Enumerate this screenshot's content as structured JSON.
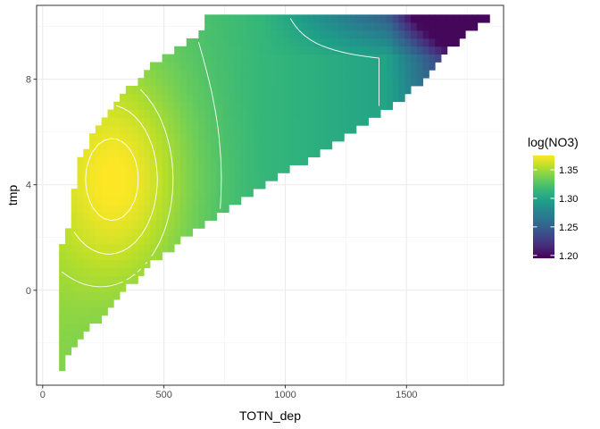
{
  "chart_data": {
    "type": "heatmap",
    "title": "",
    "xlabel": "TOTN_dep",
    "ylabel": "tmp",
    "xlim": [
      -25,
      1900
    ],
    "ylim": [
      -3.6,
      10.8
    ],
    "x_ticks": [
      0,
      500,
      1000,
      1500
    ],
    "x_tick_labels": [
      "0",
      "500",
      "1000",
      "1500"
    ],
    "y_ticks": [
      0,
      4,
      8
    ],
    "y_tick_labels": [
      "0",
      "4",
      "8"
    ],
    "x_minor_ticks": [
      250,
      750,
      1250,
      1750
    ],
    "y_minor_ticks": [
      -2,
      2,
      6,
      10
    ],
    "grid": true,
    "theme": "bw",
    "fill_variable": "log(NO3)",
    "fill_range": [
      1.195,
      1.375
    ],
    "colorscale": "viridis",
    "legend": {
      "title": "log(NO3)",
      "position": "right",
      "breaks": [
        1.35,
        1.3,
        1.25,
        1.2
      ],
      "break_labels": [
        "1.35",
        "1.30",
        "1.25",
        "1.20"
      ]
    },
    "contours": true,
    "contour_color": "#ffffff",
    "contour_levels": [
      1.3,
      1.325,
      1.35,
      1.36,
      1.37
    ],
    "grid_cells": {
      "x_start": 80,
      "x_step": 25,
      "x_count": 72,
      "y_start": -2.9,
      "y_step": 0.3,
      "y_count": 45
    },
    "domain_min_x": [
      [
        -2.9,
        80
      ],
      [
        -2.6,
        95
      ],
      [
        -2.3,
        115
      ],
      [
        -2.0,
        140
      ],
      [
        -1.5,
        190
      ],
      [
        -1.0,
        240
      ],
      [
        -0.4,
        300
      ],
      [
        0.2,
        360
      ],
      [
        0.8,
        420
      ],
      [
        1.4,
        500
      ],
      [
        2.0,
        590
      ],
      [
        2.6,
        680
      ],
      [
        3.2,
        780
      ],
      [
        3.8,
        880
      ],
      [
        4.4,
        990
      ],
      [
        5.0,
        1100
      ],
      [
        5.6,
        1210
      ],
      [
        6.2,
        1320
      ],
      [
        6.8,
        1410
      ],
      [
        7.4,
        1500
      ],
      [
        8.0,
        1570
      ],
      [
        8.6,
        1630
      ],
      [
        9.2,
        1680
      ],
      [
        9.8,
        1760
      ],
      [
        10.4,
        1860
      ]
    ],
    "domain_max_x": [
      [
        -2.9,
        100
      ],
      [
        1.5,
        100
      ],
      [
        2.2,
        120
      ],
      [
        2.6,
        150
      ],
      [
        3.6,
        150
      ],
      [
        4.2,
        160
      ],
      [
        5.0,
        180
      ],
      [
        5.8,
        230
      ],
      [
        6.6,
        280
      ],
      [
        7.4,
        360
      ],
      [
        8.2,
        440
      ],
      [
        8.8,
        520
      ],
      [
        9.3,
        600
      ],
      [
        9.8,
        680
      ],
      [
        10.4,
        700
      ]
    ],
    "value_field": {
      "base": 1.332,
      "ridge_x": 320,
      "ridge_y": 4.2,
      "ridge_amplitude": 0.043,
      "ridge_width_x": 290,
      "ridge_width_y": 4.2,
      "x_gradient": -3e-05,
      "far_x_threshold": 1420,
      "far_x_drop": 0.00033,
      "far_y_threshold": 8.8,
      "far_y_drop": 0.06,
      "min": 1.198,
      "max": 1.376
    }
  }
}
